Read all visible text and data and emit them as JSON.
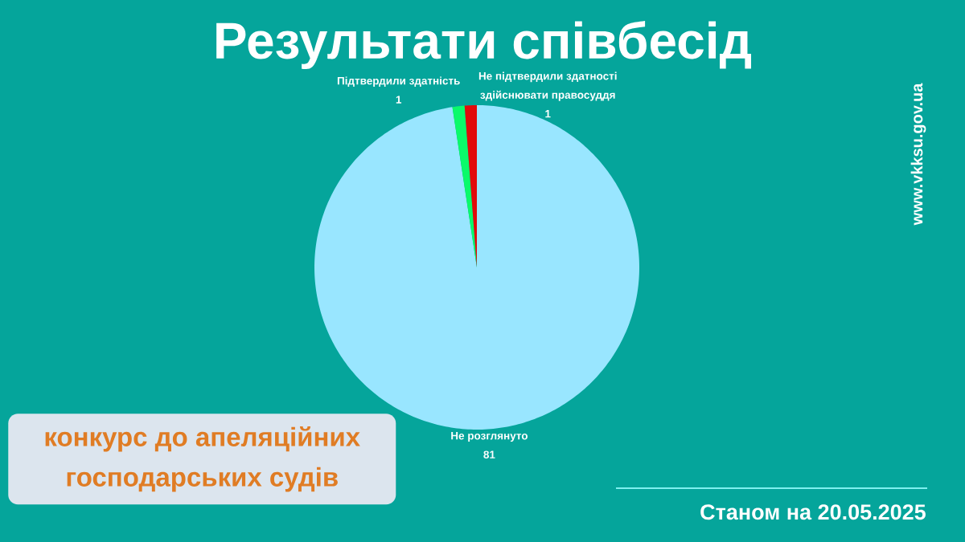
{
  "chart_data": {
    "type": "pie",
    "title": "Результати співбесід",
    "categories": [
      "Не розглянуто",
      "Підтвердили здатність",
      "Не підтвердили здатності здійснювати правосуддя"
    ],
    "values": [
      81,
      1,
      1
    ],
    "colors": [
      "#99e6ff",
      "#0afa6a",
      "#e20a0a"
    ],
    "data_labels": true,
    "annotations": [
      "конкурс до апеляційних господарських судів",
      "Станом на 20.05.2025",
      "www.vkksu.gov.ua"
    ]
  }
}
